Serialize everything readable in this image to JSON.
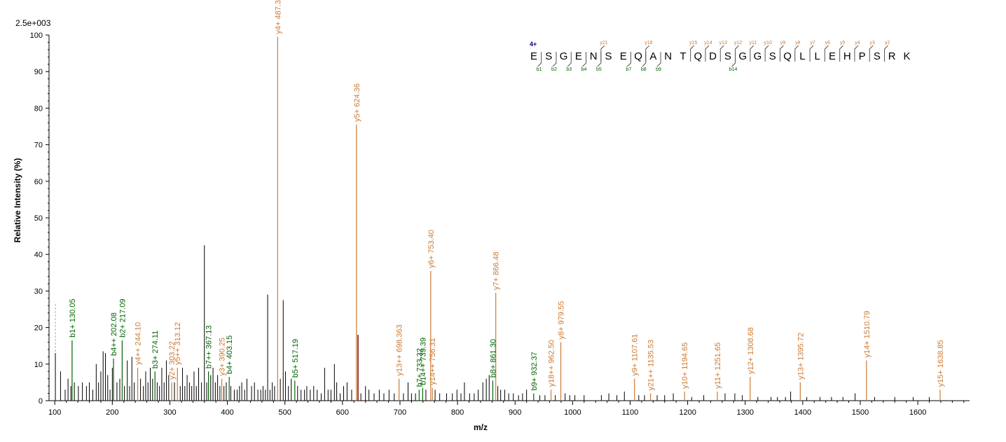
{
  "chart_data": {
    "type": "bar",
    "title": "",
    "scale_label": "2.5e+003",
    "xlabel": "m/z",
    "ylabel": "Relative   Intensity (%)",
    "xlim": [
      90,
      1690
    ],
    "ylim": [
      0,
      100
    ],
    "x_ticks": [
      100,
      200,
      300,
      400,
      500,
      600,
      700,
      800,
      900,
      1000,
      1100,
      1200,
      1300,
      1400,
      1500,
      1600
    ],
    "y_ticks": [
      0,
      10,
      20,
      30,
      40,
      50,
      60,
      70,
      80,
      90,
      100
    ],
    "colors": {
      "b": "#006400",
      "y": "#cc7a33",
      "unassigned": "#000000",
      "precursor": "#800000",
      "dashed": "#aaaaaa",
      "seq_line": "#555555"
    },
    "labeled_peaks": [
      {
        "mz": 130.05,
        "intensity": 16.5,
        "ion": "b",
        "label": "b1+ 130.05"
      },
      {
        "mz": 202.08,
        "intensity": 11.5,
        "ion": "b",
        "label": "b4++ 202.08"
      },
      {
        "mz": 217.09,
        "intensity": 16.5,
        "ion": "b",
        "label": "b2+ 217.09"
      },
      {
        "mz": 244.1,
        "intensity": 9.0,
        "ion": "y",
        "label": "y4++ 244.10"
      },
      {
        "mz": 274.11,
        "intensity": 8.0,
        "ion": "b",
        "label": "b3+ 274.11"
      },
      {
        "mz": 303.22,
        "intensity": 5.0,
        "ion": "y",
        "label": "y2+ 303.22"
      },
      {
        "mz": 313.12,
        "intensity": 9.0,
        "ion": "y",
        "label": "y5++ 313.12"
      },
      {
        "mz": 367.13,
        "intensity": 8.0,
        "ion": "b",
        "label": "b7++ 367.13"
      },
      {
        "mz": 390.25,
        "intensity": 6.0,
        "ion": "y",
        "label": "y3+ 390.25"
      },
      {
        "mz": 403.15,
        "intensity": 6.5,
        "ion": "b",
        "label": "b4+ 403.15"
      },
      {
        "mz": 487.3,
        "intensity": 99.5,
        "ion": "y",
        "label": "y4+ 487.30"
      },
      {
        "mz": 517.19,
        "intensity": 5.5,
        "ion": "b",
        "label": "b5+ 517.19"
      },
      {
        "mz": 624.36,
        "intensity": 75.5,
        "ion": "y",
        "label": "y5+ 624.36"
      },
      {
        "mz": 698.363,
        "intensity": 6.0,
        "ion": "y",
        "label": "y13++ 698.363"
      },
      {
        "mz": 733.32,
        "intensity": 3.0,
        "ion": "b",
        "label": "b7+ 733.32"
      },
      {
        "mz": 739.39,
        "intensity": 3.5,
        "ion": "b",
        "label": "b14++ 739.39"
      },
      {
        "mz": 753.4,
        "intensity": 35.5,
        "ion": "y",
        "label": "y6+ 753.40"
      },
      {
        "mz": 756.31,
        "intensity": 3.5,
        "ion": "y",
        "label": "y14++ 756.31"
      },
      {
        "mz": 861.3,
        "intensity": 5.5,
        "ion": "b",
        "label": "b8+ 861.30"
      },
      {
        "mz": 866.48,
        "intensity": 29.5,
        "ion": "y",
        "label": "y7+ 866.48"
      },
      {
        "mz": 932.37,
        "intensity": 2.0,
        "ion": "b",
        "label": "b9+ 932.37"
      },
      {
        "mz": 962.5,
        "intensity": 3.0,
        "ion": "y",
        "label": "y18++ 962.50"
      },
      {
        "mz": 979.55,
        "intensity": 16.0,
        "ion": "y",
        "label": "y8+ 979.55"
      },
      {
        "mz": 1107.61,
        "intensity": 6.0,
        "ion": "y",
        "label": "y9+ 1107.61"
      },
      {
        "mz": 1135.53,
        "intensity": 2.0,
        "ion": "y",
        "label": "y21++ 1135.53"
      },
      {
        "mz": 1194.65,
        "intensity": 2.5,
        "ion": "y",
        "label": "y10+ 1194.65"
      },
      {
        "mz": 1251.65,
        "intensity": 2.5,
        "ion": "y",
        "label": "y11+ 1251.65"
      },
      {
        "mz": 1308.68,
        "intensity": 6.5,
        "ion": "y",
        "label": "y12+ 1308.68"
      },
      {
        "mz": 1395.72,
        "intensity": 5.0,
        "ion": "y",
        "label": "y13+ 1395.72"
      },
      {
        "mz": 1510.79,
        "intensity": 11.0,
        "ion": "y",
        "label": "y14+ 1510.79"
      },
      {
        "mz": 1638.85,
        "intensity": 3.0,
        "ion": "y",
        "label": "y15+ 1638.85"
      }
    ],
    "precursor_peak": {
      "mz": 627,
      "intensity": 18
    },
    "dashed_marker": {
      "mz": 101,
      "intensity": 26.5
    },
    "unlabeled_peaks": [
      [
        101,
        13
      ],
      [
        110,
        8
      ],
      [
        118,
        3
      ],
      [
        123,
        6
      ],
      [
        128,
        4
      ],
      [
        134,
        5
      ],
      [
        141,
        4
      ],
      [
        148,
        5
      ],
      [
        155,
        4
      ],
      [
        160,
        5
      ],
      [
        166,
        3
      ],
      [
        172,
        10
      ],
      [
        176,
        5
      ],
      [
        180,
        8
      ],
      [
        184,
        13.5
      ],
      [
        188,
        13
      ],
      [
        192,
        7
      ],
      [
        196,
        3
      ],
      [
        200,
        9
      ],
      [
        208,
        5
      ],
      [
        213,
        6
      ],
      [
        221,
        4
      ],
      [
        226,
        11
      ],
      [
        230,
        4
      ],
      [
        234,
        12
      ],
      [
        238,
        5
      ],
      [
        249,
        6
      ],
      [
        254,
        4
      ],
      [
        258,
        8
      ],
      [
        262,
        5
      ],
      [
        266,
        9
      ],
      [
        270,
        6
      ],
      [
        278,
        5
      ],
      [
        282,
        4
      ],
      [
        286,
        9
      ],
      [
        290,
        5
      ],
      [
        294,
        11
      ],
      [
        298,
        7
      ],
      [
        308,
        5
      ],
      [
        318,
        4
      ],
      [
        322,
        9
      ],
      [
        326,
        4
      ],
      [
        330,
        7
      ],
      [
        334,
        5
      ],
      [
        338,
        4
      ],
      [
        342,
        8
      ],
      [
        346,
        4
      ],
      [
        350,
        9
      ],
      [
        355,
        5
      ],
      [
        360,
        42.5
      ],
      [
        364,
        5
      ],
      [
        371,
        7
      ],
      [
        375,
        9
      ],
      [
        379,
        5
      ],
      [
        383,
        7
      ],
      [
        387,
        4
      ],
      [
        394,
        4
      ],
      [
        398,
        5
      ],
      [
        406,
        4
      ],
      [
        412,
        3
      ],
      [
        417,
        3
      ],
      [
        421,
        4
      ],
      [
        425,
        5
      ],
      [
        430,
        3
      ],
      [
        434,
        6
      ],
      [
        442,
        4
      ],
      [
        447,
        5
      ],
      [
        453,
        3
      ],
      [
        458,
        3
      ],
      [
        462,
        4
      ],
      [
        466,
        3
      ],
      [
        470,
        29
      ],
      [
        474,
        3
      ],
      [
        478,
        5
      ],
      [
        482,
        4
      ],
      [
        492,
        6
      ],
      [
        497,
        27.5
      ],
      [
        501,
        8
      ],
      [
        506,
        4
      ],
      [
        511,
        6
      ],
      [
        522,
        4
      ],
      [
        528,
        3
      ],
      [
        534,
        3
      ],
      [
        538,
        4
      ],
      [
        544,
        3
      ],
      [
        550,
        4
      ],
      [
        556,
        3
      ],
      [
        563,
        2
      ],
      [
        569,
        9
      ],
      [
        575,
        3
      ],
      [
        580,
        3
      ],
      [
        586,
        10
      ],
      [
        590,
        5
      ],
      [
        596,
        2
      ],
      [
        602,
        4
      ],
      [
        608,
        5
      ],
      [
        616,
        3
      ],
      [
        632,
        2
      ],
      [
        640,
        4
      ],
      [
        646,
        3
      ],
      [
        655,
        2
      ],
      [
        664,
        3
      ],
      [
        672,
        2
      ],
      [
        681,
        3
      ],
      [
        690,
        2
      ],
      [
        706,
        2
      ],
      [
        714,
        5
      ],
      [
        720,
        2
      ],
      [
        727,
        2
      ],
      [
        745,
        3
      ],
      [
        761,
        3
      ],
      [
        769,
        2
      ],
      [
        781,
        2
      ],
      [
        791,
        2
      ],
      [
        799,
        3
      ],
      [
        806,
        2
      ],
      [
        812,
        5
      ],
      [
        821,
        2
      ],
      [
        829,
        2
      ],
      [
        836,
        3
      ],
      [
        844,
        5
      ],
      [
        850,
        6
      ],
      [
        855,
        7
      ],
      [
        870,
        4
      ],
      [
        875,
        3
      ],
      [
        882,
        3
      ],
      [
        889,
        2
      ],
      [
        897,
        2
      ],
      [
        906,
        1.5
      ],
      [
        913,
        2
      ],
      [
        920,
        3
      ],
      [
        943,
        1.5
      ],
      [
        952,
        1.5
      ],
      [
        970,
        1.5
      ],
      [
        987,
        2
      ],
      [
        995,
        1.5
      ],
      [
        1004,
        1.5
      ],
      [
        1020,
        1.5
      ],
      [
        1050,
        1.5
      ],
      [
        1063,
        2
      ],
      [
        1077,
        1.5
      ],
      [
        1090,
        2.5
      ],
      [
        1115,
        1.5
      ],
      [
        1125,
        1.5
      ],
      [
        1147,
        1.5
      ],
      [
        1160,
        1.5
      ],
      [
        1175,
        2
      ],
      [
        1207,
        1
      ],
      [
        1228,
        1.5
      ],
      [
        1265,
        2
      ],
      [
        1282,
        2
      ],
      [
        1295,
        1.5
      ],
      [
        1322,
        1
      ],
      [
        1345,
        1
      ],
      [
        1356,
        1
      ],
      [
        1370,
        1
      ],
      [
        1379,
        2.5
      ],
      [
        1407,
        1
      ],
      [
        1430,
        1
      ],
      [
        1450,
        1
      ],
      [
        1470,
        1
      ],
      [
        1491,
        2
      ],
      [
        1525,
        1
      ],
      [
        1560,
        1
      ],
      [
        1592,
        1
      ],
      [
        1620,
        1
      ]
    ],
    "sequence": {
      "charge": "4+",
      "residues": [
        "E",
        "S",
        "G",
        "E",
        "N",
        "S",
        "E",
        "Q",
        "A",
        "N",
        "T",
        "Q",
        "D",
        "S",
        "G",
        "G",
        "S",
        "Q",
        "L",
        "L",
        "E",
        "H",
        "P",
        "S",
        "R",
        "K"
      ],
      "b_ions": [
        {
          "after_index": 0,
          "label": "b1"
        },
        {
          "after_index": 1,
          "label": "b2"
        },
        {
          "after_index": 2,
          "label": "b3"
        },
        {
          "after_index": 3,
          "label": "b4"
        },
        {
          "after_index": 4,
          "label": "b5"
        },
        {
          "after_index": 6,
          "label": "b7"
        },
        {
          "after_index": 7,
          "label": "b8"
        },
        {
          "after_index": 8,
          "label": "b9"
        },
        {
          "after_index": 13,
          "label": "b14"
        }
      ],
      "y_ions": [
        {
          "after_index": 4,
          "label": "y21"
        },
        {
          "after_index": 7,
          "label": "y18"
        },
        {
          "after_index": 10,
          "label": "y15"
        },
        {
          "after_index": 11,
          "label": "y14"
        },
        {
          "after_index": 12,
          "label": "y13"
        },
        {
          "after_index": 13,
          "label": "y12"
        },
        {
          "after_index": 14,
          "label": "y11"
        },
        {
          "after_index": 15,
          "label": "y10"
        },
        {
          "after_index": 16,
          "label": "y9"
        },
        {
          "after_index": 17,
          "label": "y8"
        },
        {
          "after_index": 18,
          "label": "y7"
        },
        {
          "after_index": 19,
          "label": "y6"
        },
        {
          "after_index": 20,
          "label": "y5"
        },
        {
          "after_index": 21,
          "label": "y4"
        },
        {
          "after_index": 22,
          "label": "y3"
        },
        {
          "after_index": 23,
          "label": "y2"
        }
      ]
    }
  }
}
